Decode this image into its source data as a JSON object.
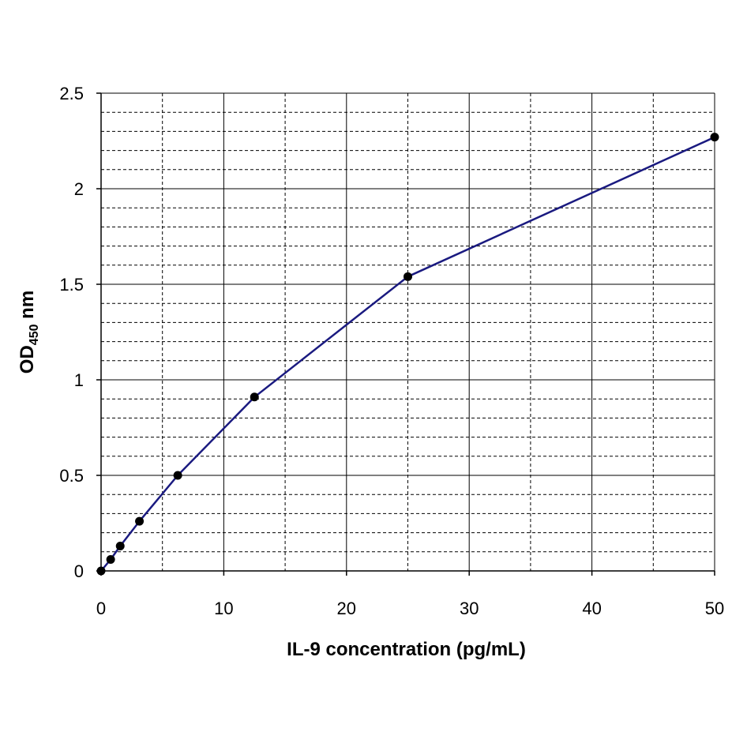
{
  "chart_data": {
    "type": "line",
    "title": "",
    "xlabel": "IL-9 concentration (pg/mL)",
    "ylabel": {
      "main": "OD",
      "subscript": "450",
      "suffix": " nm"
    },
    "xlim": [
      0,
      50
    ],
    "ylim": [
      0,
      2.5
    ],
    "x_ticks": [
      0,
      10,
      20,
      30,
      40,
      50
    ],
    "x_tick_labels": [
      "0",
      "10",
      "20",
      "30",
      "40",
      "50"
    ],
    "y_ticks": [
      0,
      0.5,
      1,
      1.5,
      2,
      2.5
    ],
    "y_tick_labels": [
      "0",
      "0.5",
      "1",
      "1.5",
      "2",
      "2.5"
    ],
    "grid": true,
    "x_minor_step": 5,
    "y_minor_step": 0.1,
    "series": [
      {
        "color": "#1a1a80",
        "marker_color": "#000000",
        "x": [
          0,
          0.78,
          1.56,
          3.125,
          6.25,
          12.5,
          25,
          50
        ],
        "y": [
          0.0,
          0.06,
          0.13,
          0.26,
          0.5,
          0.91,
          1.54,
          2.27
        ]
      }
    ]
  }
}
